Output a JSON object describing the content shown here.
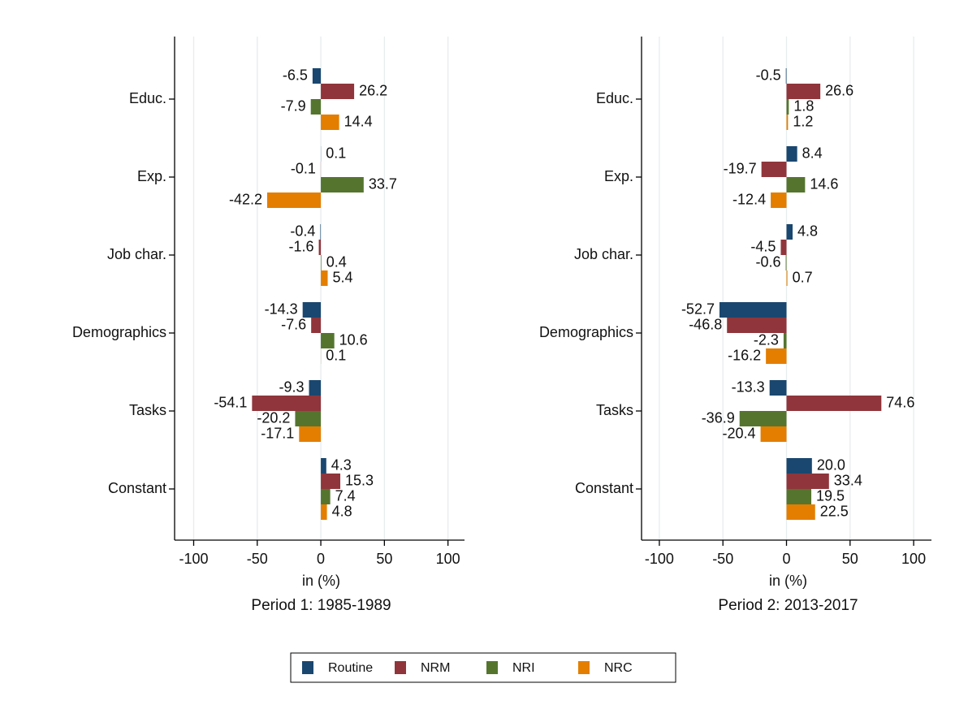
{
  "chart_data": [
    {
      "type": "bar",
      "orientation": "horizontal",
      "title": "Period 1: 1985-1989",
      "xlabel": "in (%)",
      "categories": [
        "Educ.",
        "Exp.",
        "Job char.",
        "Demographics",
        "Tasks",
        "Constant"
      ],
      "series": [
        {
          "name": "Routine",
          "color": "#1a476f",
          "values": [
            -6.5,
            0.1,
            -0.4,
            -14.3,
            -9.3,
            4.3
          ]
        },
        {
          "name": "NRM",
          "color": "#90353b",
          "values": [
            26.2,
            -0.1,
            -1.6,
            -7.6,
            -54.1,
            15.3
          ]
        },
        {
          "name": "NRI",
          "color": "#55752f",
          "values": [
            -7.9,
            33.7,
            0.4,
            10.6,
            -20.2,
            7.4
          ]
        },
        {
          "name": "NRC",
          "color": "#e37e00",
          "values": [
            14.4,
            -42.2,
            5.4,
            0.1,
            -17.1,
            4.8
          ]
        }
      ],
      "xlim": [
        -115,
        113
      ],
      "xticks": [
        -100,
        -50,
        0,
        50,
        100
      ],
      "grid": true
    },
    {
      "type": "bar",
      "orientation": "horizontal",
      "title": "Period 2: 2013-2017",
      "xlabel": "in (%)",
      "categories": [
        "Educ.",
        "Exp.",
        "Job char.",
        "Demographics",
        "Tasks",
        "Constant"
      ],
      "series": [
        {
          "color": "#1a476f",
          "values": [
            -0.5,
            8.4,
            4.8,
            -52.7,
            -13.3,
            20.0
          ],
          "value_labels": [
            "-0.5",
            "8.4",
            "4.8",
            "-52.7",
            "-13.3",
            "20.0"
          ]
        },
        {
          "color": "#90353b",
          "values": [
            26.6,
            -19.7,
            -4.5,
            -46.8,
            74.6,
            33.4
          ]
        },
        {
          "color": "#55752f",
          "values": [
            1.8,
            14.6,
            -0.6,
            -2.3,
            -36.9,
            19.5
          ]
        },
        {
          "color": "#e37e00",
          "values": [
            1.2,
            -12.4,
            0.7,
            -16.2,
            -20.4,
            22.5
          ]
        }
      ],
      "xlim": [
        -114,
        114
      ],
      "xticks": [
        -100,
        -50,
        0,
        50,
        100
      ],
      "grid": true
    }
  ]
}
